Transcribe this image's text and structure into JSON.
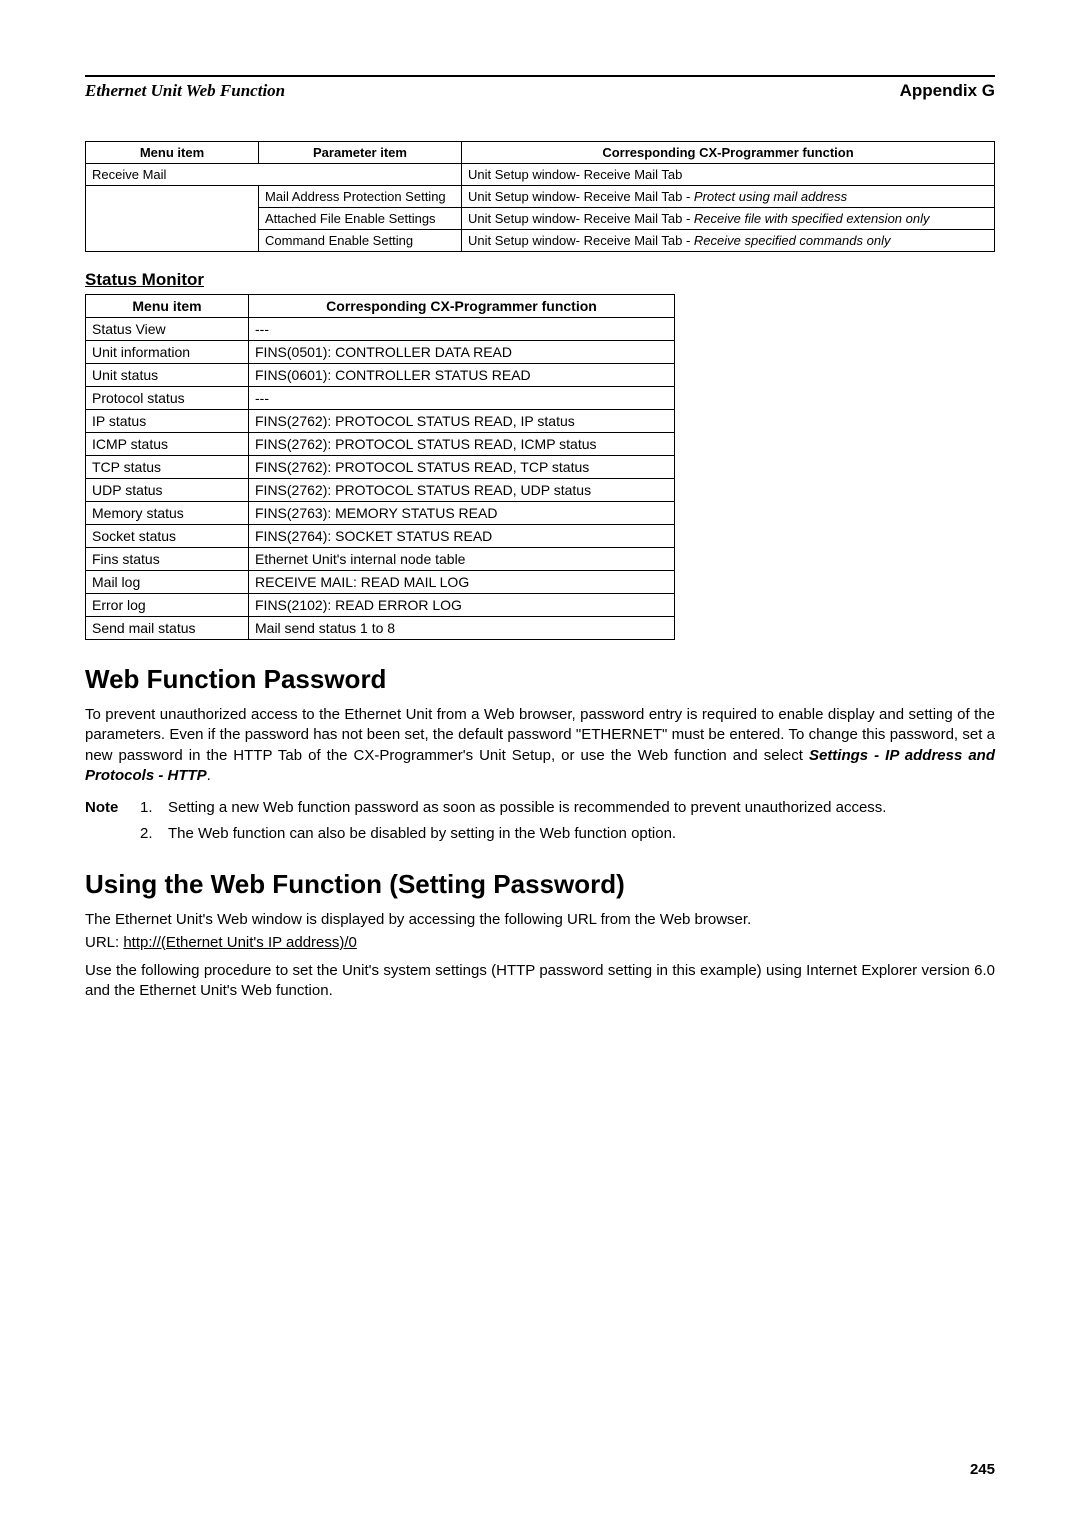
{
  "header": {
    "left": "Ethernet Unit Web Function",
    "right": "Appendix G"
  },
  "table1": {
    "headers": [
      "Menu item",
      "Parameter item",
      "Corresponding CX-Programmer function"
    ],
    "rows": [
      {
        "a": "Receive Mail",
        "a_span": 2,
        "c": "Unit Setup window- Receive Mail Tab"
      },
      {
        "a": "",
        "b": "Mail Address Protection Setting",
        "c_pre": "Unit Setup window- Receive Mail Tab - ",
        "c_it": "Protect using mail address"
      },
      {
        "a": "",
        "b": "Attached File Enable Settings",
        "c_pre": "Unit Setup window- Receive Mail Tab - ",
        "c_it": "Receive file with specified extension only"
      },
      {
        "a": "",
        "b": "Command Enable Setting",
        "c_pre": "Unit Setup window- Receive Mail Tab - ",
        "c_it": "Receive specified commands only"
      }
    ]
  },
  "status_monitor_heading": "Status Monitor",
  "table2": {
    "headers": [
      "Menu item",
      "Corresponding CX-Programmer function"
    ],
    "rows": [
      [
        "Status View",
        "---"
      ],
      [
        "Unit information",
        "FINS(0501): CONTROLLER DATA READ"
      ],
      [
        "Unit status",
        "FINS(0601): CONTROLLER STATUS READ"
      ],
      [
        "Protocol status",
        "---"
      ],
      [
        "IP status",
        "FINS(2762): PROTOCOL STATUS READ, IP status"
      ],
      [
        "ICMP status",
        "FINS(2762): PROTOCOL STATUS READ, ICMP status"
      ],
      [
        "TCP status",
        "FINS(2762): PROTOCOL STATUS READ, TCP status"
      ],
      [
        "UDP status",
        "FINS(2762): PROTOCOL STATUS READ, UDP status"
      ],
      [
        "Memory status",
        "FINS(2763): MEMORY STATUS READ"
      ],
      [
        "Socket status",
        "FINS(2764): SOCKET STATUS READ"
      ],
      [
        "Fins status",
        "Ethernet Unit's internal node table"
      ],
      [
        "Mail log",
        "RECEIVE MAIL: READ MAIL LOG"
      ],
      [
        "Error log",
        "FINS(2102): READ ERROR LOG"
      ],
      [
        "Send mail status",
        "Mail send status 1 to 8"
      ]
    ]
  },
  "h1_1": "Web Function Password",
  "para1_a": "To prevent unauthorized access to the Ethernet Unit from a Web browser, password entry is required to enable display and setting of the parameters. Even if the password has not been set, the default password \"ETHERNET\" must be entered. To change this password, set a new password in the HTTP Tab of the CX-Programmer's Unit Setup, or use the Web function and select ",
  "para1_b": "Settings - IP address and Protocols - HTTP",
  "para1_c": ".",
  "note_label": "Note",
  "note1_num": "1.",
  "note1": "Setting a new Web function password as soon as possible is recommended to prevent unauthorized access.",
  "note2_num": "2.",
  "note2": "The Web function can also be disabled by setting in the Web function option.",
  "h1_2": "Using the Web Function (Setting Password)",
  "para2": "The Ethernet Unit's Web window is displayed by accessing the following URL from the Web browser.",
  "url_label": "URL: ",
  "url_value": "http://(Ethernet Unit's IP address)/0",
  "para3": "Use the following procedure to set the Unit's system settings (HTTP password setting in this example) using Internet Explorer version 6.0 and the Ethernet Unit's Web function.",
  "page_number": "245"
}
